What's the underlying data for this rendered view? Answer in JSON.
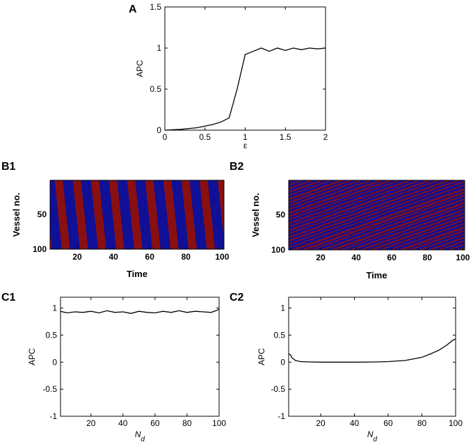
{
  "panels": {
    "A": "A",
    "B1": "B1",
    "B2": "B2",
    "C1": "C1",
    "C2": "C2"
  },
  "chart_data": [
    {
      "id": "A",
      "type": "line",
      "xlabel": "ε",
      "ylabel": "APC",
      "xlim": [
        0,
        2
      ],
      "ylim": [
        0,
        1.5
      ],
      "xticks": [
        "0",
        "0.5",
        "1",
        "1.5",
        "2"
      ],
      "yticks": [
        "0",
        "0.5",
        "1",
        "1.5"
      ],
      "grid": false,
      "x": [
        0,
        0.1,
        0.2,
        0.3,
        0.4,
        0.5,
        0.6,
        0.7,
        0.8,
        0.9,
        1.0,
        1.1,
        1.2,
        1.3,
        1.4,
        1.5,
        1.6,
        1.7,
        1.8,
        1.9,
        2.0
      ],
      "y": [
        0.0,
        0.005,
        0.01,
        0.02,
        0.03,
        0.05,
        0.07,
        0.1,
        0.15,
        0.5,
        0.92,
        0.96,
        1.0,
        0.96,
        1.0,
        0.97,
        1.0,
        0.98,
        1.0,
        0.99,
        1.0
      ]
    },
    {
      "id": "B1",
      "type": "heatmap",
      "xlabel": "Time",
      "ylabel": "Vessel no.",
      "xticks": [
        "20",
        "40",
        "60",
        "80",
        "100"
      ],
      "yticks": [
        "50",
        "100"
      ],
      "xlim": [
        5,
        101
      ],
      "ylim": [
        1,
        100
      ],
      "pattern": "synchronized",
      "phase_lines_slope": 0.04,
      "stripe_period": 10,
      "colors": {
        "high": "#8b1010",
        "low": "#10109a"
      }
    },
    {
      "id": "B2",
      "type": "heatmap",
      "xlabel": "Time",
      "ylabel": "Vessel no.",
      "xticks": [
        "20",
        "40",
        "60",
        "80",
        "100"
      ],
      "yticks": [
        "50",
        "100"
      ],
      "xlim": [
        2,
        101
      ],
      "ylim": [
        1,
        100
      ],
      "pattern": "traveling-waves",
      "phase_lines_slope": 1.1,
      "stripe_period": 10,
      "colors": {
        "high": "#8b1010",
        "low": "#10109a"
      }
    },
    {
      "id": "C1",
      "type": "line",
      "xlabel": "N",
      "xlabel_sub": "d",
      "ylabel": "APC",
      "xlim": [
        1,
        100
      ],
      "ylim": [
        -1,
        1.2
      ],
      "xticks": [
        "20",
        "40",
        "60",
        "80",
        "100"
      ],
      "yticks": [
        "-1",
        "-0.5",
        "0",
        "0.5",
        "1"
      ],
      "grid": false,
      "x": [
        1,
        5,
        10,
        15,
        20,
        25,
        30,
        35,
        40,
        45,
        50,
        55,
        60,
        65,
        70,
        75,
        80,
        85,
        90,
        95,
        98,
        100
      ],
      "y": [
        0.94,
        0.91,
        0.93,
        0.92,
        0.94,
        0.91,
        0.95,
        0.92,
        0.93,
        0.9,
        0.94,
        0.92,
        0.91,
        0.94,
        0.92,
        0.95,
        0.92,
        0.94,
        0.93,
        0.92,
        0.95,
        0.98
      ]
    },
    {
      "id": "C2",
      "type": "line",
      "xlabel": "N",
      "xlabel_sub": "d",
      "ylabel": "APC",
      "xlim": [
        1,
        100
      ],
      "ylim": [
        -1,
        1.2
      ],
      "xticks": [
        "20",
        "40",
        "60",
        "80",
        "100"
      ],
      "yticks": [
        "-1",
        "-0.5",
        "0",
        "0.5",
        "1"
      ],
      "grid": false,
      "x": [
        1,
        2,
        3,
        5,
        8,
        12,
        20,
        30,
        40,
        50,
        60,
        70,
        75,
        80,
        85,
        90,
        95,
        98,
        100
      ],
      "y": [
        0.15,
        0.14,
        0.08,
        0.03,
        0.01,
        0.005,
        0.0,
        0.0,
        0.0,
        0.002,
        0.01,
        0.03,
        0.06,
        0.09,
        0.15,
        0.22,
        0.32,
        0.4,
        0.43
      ]
    }
  ]
}
